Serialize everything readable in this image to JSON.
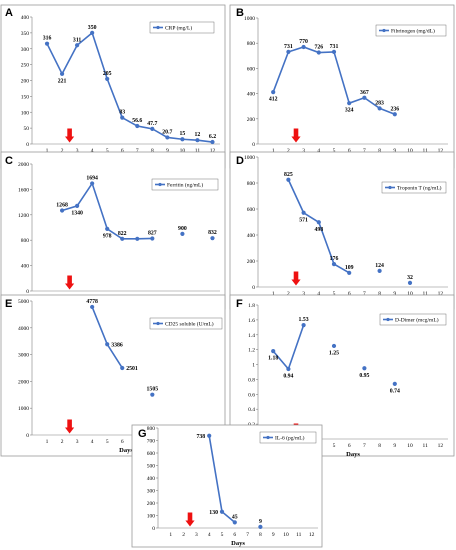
{
  "colors": {
    "series": "#4472C4",
    "arrow": "#ee1111",
    "frame": "#9a9a9a"
  },
  "chart_data": [
    {
      "panel": "A",
      "type": "line",
      "legend": "CRP (mg/L)",
      "xlabel": "Days",
      "xlim": [
        0,
        12.5
      ],
      "ylim": [
        0,
        400
      ],
      "xticks": [
        "1",
        "2",
        "3",
        "4",
        "5",
        "6",
        "7",
        "8",
        "9",
        "10",
        "11",
        "12"
      ],
      "yticks": [
        "0",
        "50",
        "100",
        "150",
        "200",
        "250",
        "300",
        "350",
        "400"
      ],
      "ytick_values": [
        0,
        50,
        100,
        150,
        200,
        250,
        300,
        350,
        400
      ],
      "arrow_x": 2.5,
      "x": [
        1,
        2,
        3,
        4,
        5,
        6,
        7,
        8,
        9,
        10,
        11,
        12
      ],
      "values": [
        316,
        221,
        311,
        350,
        205,
        83,
        56.6,
        47.7,
        20.7,
        15,
        12,
        6.2
      ],
      "labels": [
        "316",
        "221",
        "311",
        "350",
        "205",
        "83",
        "56.6",
        "47.7",
        "20.7",
        "15",
        "12",
        "6.2"
      ],
      "label_pos": [
        "above",
        "below",
        "above",
        "above",
        "above",
        "above",
        "above",
        "above",
        "above",
        "above",
        "above",
        "above"
      ],
      "segments": [
        [
          0,
          11
        ]
      ]
    },
    {
      "panel": "B",
      "type": "line",
      "legend": "Fibrinogen (mg/dL)",
      "xlabel": "Days",
      "xlim": [
        0,
        12.5
      ],
      "ylim": [
        0,
        1000
      ],
      "xticks": [
        "1",
        "2",
        "3",
        "4",
        "5",
        "6",
        "7",
        "8",
        "9",
        "10",
        "11",
        "12"
      ],
      "yticks": [
        "0",
        "200",
        "400",
        "600",
        "800",
        "1000"
      ],
      "ytick_values": [
        0,
        200,
        400,
        600,
        800,
        1000
      ],
      "arrow_x": 2.5,
      "x": [
        1,
        2,
        3,
        4,
        5,
        6,
        7,
        8,
        9
      ],
      "values": [
        412,
        731,
        770,
        726,
        731,
        324,
        367,
        283,
        236
      ],
      "labels": [
        "412",
        "731",
        "770",
        "726",
        "731",
        "324",
        "367",
        "283",
        "236"
      ],
      "label_pos": [
        "below",
        "above",
        "above",
        "above",
        "above",
        "below",
        "above",
        "above",
        "above"
      ],
      "segments": [
        [
          0,
          8
        ]
      ]
    },
    {
      "panel": "C",
      "type": "line",
      "legend": "Ferritin (ng/mL)",
      "xlabel": "Days",
      "xlim": [
        0,
        12.5
      ],
      "ylim": [
        0,
        2000
      ],
      "xticks": [
        "1",
        "2",
        "3",
        "4",
        "5",
        "6",
        "7",
        "8",
        "9",
        "10",
        "11",
        "12"
      ],
      "yticks": [
        "0",
        "400",
        "800",
        "1200",
        "1600",
        "2000"
      ],
      "ytick_values": [
        0,
        400,
        800,
        1200,
        1600,
        2000
      ],
      "arrow_x": 2.5,
      "x": [
        2,
        3,
        4,
        5,
        6,
        7,
        8,
        10,
        12
      ],
      "values": [
        1268,
        1340,
        1694,
        978,
        822,
        822,
        827,
        900,
        832
      ],
      "labels": [
        "1268",
        "1340",
        "1694",
        "978",
        "822",
        "",
        "827",
        "900",
        "832"
      ],
      "label_pos": [
        "above",
        "below",
        "above",
        "below",
        "above",
        "above",
        "above",
        "above",
        "above"
      ],
      "segments": [
        [
          0,
          6
        ]
      ]
    },
    {
      "panel": "D",
      "type": "line",
      "legend": "Troponin T (ng/mL)",
      "xlabel": "Days",
      "xlim": [
        0,
        12.5
      ],
      "ylim": [
        0,
        1000
      ],
      "xticks": [
        "1",
        "2",
        "3",
        "4",
        "5",
        "6",
        "7",
        "8",
        "9",
        "10",
        "11",
        "12"
      ],
      "yticks": [
        "0",
        "200",
        "400",
        "600",
        "800",
        "1000"
      ],
      "ytick_values": [
        0,
        200,
        400,
        600,
        800,
        1000
      ],
      "arrow_x": 2.5,
      "x": [
        2,
        3,
        4,
        5,
        6,
        8,
        10
      ],
      "values": [
        825,
        571,
        498,
        176,
        109,
        124,
        32
      ],
      "labels": [
        "825",
        "571",
        "498",
        "176",
        "109",
        "124",
        "32"
      ],
      "label_pos": [
        "above",
        "below",
        "below",
        "above",
        "above",
        "above",
        "above"
      ],
      "segments": [
        [
          0,
          4
        ]
      ]
    },
    {
      "panel": "E",
      "type": "line",
      "legend": "CD25 soluble (U/mL)",
      "xlabel": "Days",
      "xlim": [
        0,
        12.5
      ],
      "ylim": [
        0,
        5000
      ],
      "xticks": [
        "1",
        "2",
        "3",
        "4",
        "5",
        "6",
        "7",
        "8",
        "9",
        "10",
        "11",
        "12"
      ],
      "yticks": [
        "0",
        "1000",
        "2000",
        "3000",
        "4000",
        "5000"
      ],
      "ytick_values": [
        0,
        1000,
        2000,
        3000,
        4000,
        5000
      ],
      "arrow_x": 2.5,
      "x": [
        4,
        5,
        6,
        8
      ],
      "values": [
        4778,
        3386,
        2501,
        1505
      ],
      "labels": [
        "4778",
        "3386",
        "2501",
        "1505"
      ],
      "label_pos": [
        "above",
        "right",
        "right",
        "above"
      ],
      "segments": [
        [
          0,
          2
        ]
      ]
    },
    {
      "panel": "F",
      "type": "line",
      "legend": "D-Dimer (mcg/mL)",
      "xlabel": "Days",
      "xlim": [
        0,
        12.5
      ],
      "ylim": [
        0,
        1.8
      ],
      "xticks": [
        "1",
        "2",
        "3",
        "4",
        "5",
        "6",
        "7",
        "8",
        "9",
        "10",
        "11",
        "12"
      ],
      "yticks": [
        "0",
        "0.2",
        "0.4",
        "0.6",
        "0.8",
        "1",
        "1.2",
        "1.4",
        "1.6",
        "1.8"
      ],
      "ytick_values": [
        0,
        0.2,
        0.4,
        0.6,
        0.8,
        1,
        1.2,
        1.4,
        1.6,
        1.8
      ],
      "arrow_x": 2.5,
      "x": [
        1,
        2,
        3,
        5,
        7,
        9
      ],
      "values": [
        1.18,
        0.94,
        1.53,
        1.25,
        0.95,
        0.74
      ],
      "labels": [
        "1.18",
        "0.94",
        "1.53",
        "1.25",
        "0.95",
        "0.74"
      ],
      "label_pos": [
        "below",
        "below",
        "above",
        "below",
        "below",
        "below"
      ],
      "segments": [
        [
          0,
          2
        ]
      ]
    },
    {
      "panel": "G",
      "type": "line",
      "legend": "IL-6 (pg/mL)",
      "xlabel": "Days",
      "xlim": [
        0,
        12.5
      ],
      "ylim": [
        0,
        800
      ],
      "xticks": [
        "1",
        "2",
        "3",
        "4",
        "5",
        "6",
        "7",
        "8",
        "9",
        "10",
        "11",
        "12"
      ],
      "yticks": [
        "0",
        "100",
        "200",
        "300",
        "400",
        "500",
        "600",
        "700",
        "800"
      ],
      "ytick_values": [
        0,
        100,
        200,
        300,
        400,
        500,
        600,
        700,
        800
      ],
      "arrow_x": 2.5,
      "x": [
        4,
        5,
        6,
        8
      ],
      "values": [
        738,
        130,
        45,
        9
      ],
      "labels": [
        "738",
        "130",
        "45",
        "9"
      ],
      "label_pos": [
        "left",
        "left",
        "above",
        "above"
      ],
      "segments": [
        [
          0,
          2
        ]
      ]
    }
  ]
}
